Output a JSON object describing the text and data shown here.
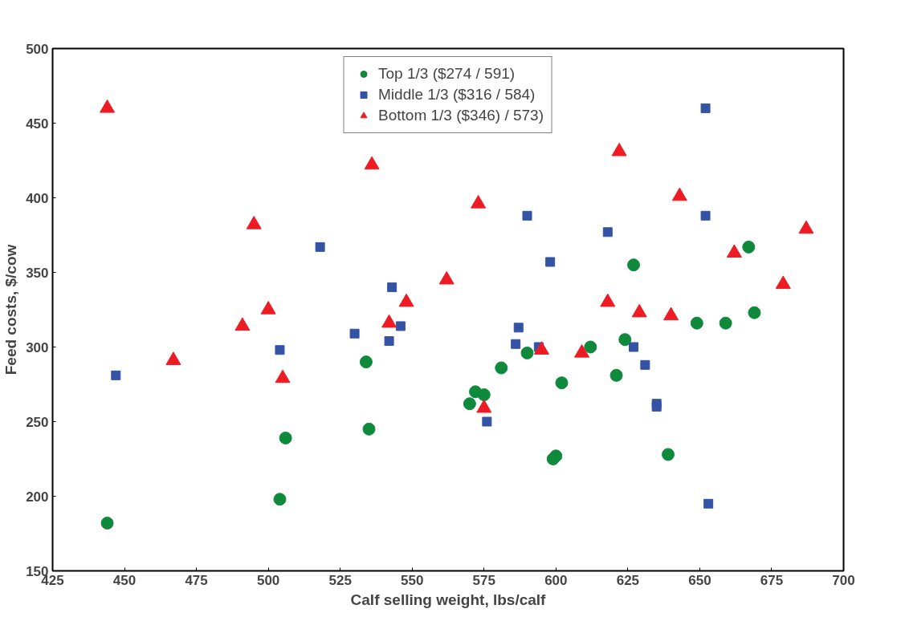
{
  "chart_data": {
    "type": "scatter",
    "xlabel": "Calf selling weight, lbs/calf",
    "ylabel": "Feed costs, $/cow",
    "xlim": [
      425,
      700
    ],
    "xticks": [
      425,
      450,
      475,
      500,
      525,
      550,
      575,
      600,
      625,
      650,
      675,
      700
    ],
    "ylim": [
      150,
      500
    ],
    "yticks": [
      150,
      200,
      250,
      300,
      350,
      400,
      450,
      500
    ],
    "grid": false,
    "legend": "top",
    "series": [
      {
        "name": "Top 1/3 ($274 / 591)",
        "color": "#0f8a3c",
        "marker": "circle",
        "x": [
          444,
          504,
          506,
          534,
          535,
          570,
          572,
          575,
          581,
          590,
          599,
          600,
          602,
          612,
          621,
          624,
          627,
          639,
          649,
          659,
          667,
          669
        ],
        "values": [
          182,
          198,
          239,
          290,
          245,
          262,
          270,
          268,
          286,
          296,
          225,
          227,
          276,
          300,
          281,
          305,
          355,
          228,
          316,
          316,
          367,
          323
        ]
      },
      {
        "name": "Middle 1/3 ($316 / 584)",
        "color": "#3553a5",
        "marker": "square",
        "x": [
          447,
          518,
          504,
          530,
          542,
          543,
          546,
          576,
          586,
          587,
          590,
          594,
          598,
          618,
          627,
          631,
          635,
          635,
          652,
          652,
          653
        ],
        "values": [
          281,
          367,
          298,
          309,
          304,
          340,
          314,
          250,
          302,
          313,
          388,
          300,
          357,
          377,
          300,
          288,
          262,
          260,
          388,
          460,
          195
        ]
      },
      {
        "name": "Bottom 1/3 ($346) / 573)",
        "color": "#ed1c24",
        "marker": "triangle",
        "x": [
          444,
          467,
          491,
          495,
          500,
          505,
          536,
          542,
          548,
          562,
          573,
          575,
          595,
          609,
          618,
          622,
          629,
          643,
          640,
          662,
          679,
          687
        ],
        "values": [
          460,
          291,
          314,
          382,
          325,
          279,
          422,
          316,
          330,
          345,
          396,
          259,
          298,
          296,
          330,
          431,
          323,
          401,
          321,
          363,
          342,
          379
        ]
      }
    ]
  }
}
